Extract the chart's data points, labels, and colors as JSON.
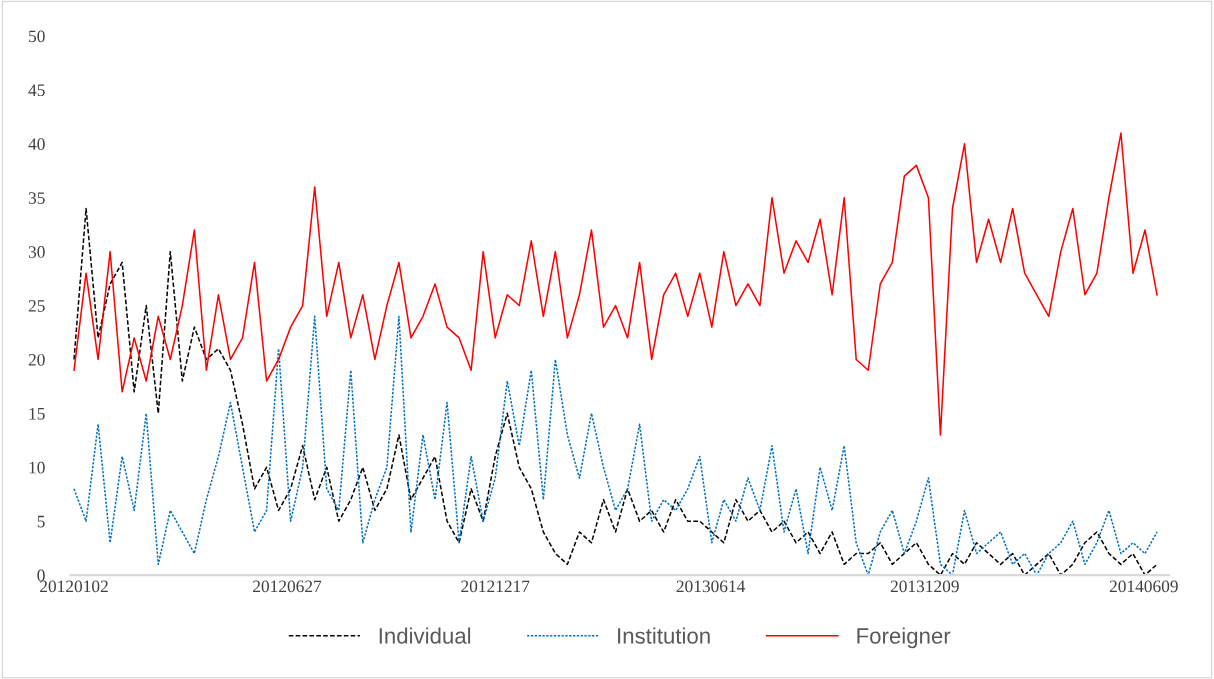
{
  "chart_data": {
    "type": "line",
    "x": [
      "2012-01-02",
      "2012-01-12",
      "2012-01-22",
      "2012-02-01",
      "2012-02-11",
      "2012-02-21",
      "2012-03-02",
      "2012-03-12",
      "2012-03-22",
      "2012-04-01",
      "2012-04-11",
      "2012-04-21",
      "2012-05-01",
      "2012-05-11",
      "2012-05-21",
      "2012-05-31",
      "2012-06-10",
      "2012-06-20",
      "2012-06-30",
      "2012-07-10",
      "2012-07-20",
      "2012-07-30",
      "2012-08-09",
      "2012-08-19",
      "2012-08-29",
      "2012-09-08",
      "2012-09-18",
      "2012-09-28",
      "2012-10-08",
      "2012-10-18",
      "2012-10-28",
      "2012-11-07",
      "2012-11-17",
      "2012-11-27",
      "2012-12-07",
      "2012-12-17",
      "2012-12-27",
      "2013-01-06",
      "2013-01-16",
      "2013-01-26",
      "2013-02-05",
      "2013-02-15",
      "2013-02-25",
      "2013-03-07",
      "2013-03-17",
      "2013-03-27",
      "2013-04-06",
      "2013-04-16",
      "2013-04-26",
      "2013-05-06",
      "2013-05-16",
      "2013-05-26",
      "2013-06-05",
      "2013-06-15",
      "2013-06-25",
      "2013-07-05",
      "2013-07-15",
      "2013-07-25",
      "2013-08-04",
      "2013-08-14",
      "2013-08-24",
      "2013-09-03",
      "2013-09-13",
      "2013-09-23",
      "2013-10-03",
      "2013-10-13",
      "2013-10-23",
      "2013-11-02",
      "2013-11-12",
      "2013-11-22",
      "2013-12-02",
      "2013-12-12",
      "2013-12-22",
      "2014-01-01",
      "2014-01-11",
      "2014-01-21",
      "2014-01-31",
      "2014-02-10",
      "2014-02-20",
      "2014-03-02",
      "2014-03-12",
      "2014-03-22",
      "2014-04-01",
      "2014-04-11",
      "2014-04-21",
      "2014-05-01",
      "2014-05-11",
      "2014-05-21",
      "2014-05-31",
      "2014-06-10",
      "2014-06-20"
    ],
    "series": [
      {
        "name": "Individual",
        "color": "#000000",
        "line_style": "dashed",
        "values": [
          20,
          34,
          22,
          27,
          29,
          17,
          25,
          15,
          30,
          18,
          23,
          20,
          21,
          19,
          14,
          8,
          10,
          6,
          8,
          12,
          7,
          10,
          5,
          7,
          10,
          6,
          8,
          13,
          7,
          9,
          11,
          5,
          3,
          8,
          5,
          11,
          15,
          10,
          8,
          4,
          2,
          1,
          4,
          3,
          7,
          4,
          8,
          5,
          6,
          4,
          7,
          5,
          5,
          4,
          3,
          7,
          5,
          6,
          4,
          5,
          3,
          4,
          2,
          4,
          1,
          2,
          2,
          3,
          1,
          2,
          3,
          1,
          0,
          2,
          1,
          3,
          2,
          1,
          2,
          0,
          1,
          2,
          0,
          1,
          3,
          4,
          2,
          1,
          2,
          0,
          1
        ]
      },
      {
        "name": "Institution",
        "color": "#0070c0",
        "line_style": "dotted",
        "values": [
          8,
          5,
          14,
          3,
          11,
          6,
          15,
          1,
          6,
          4,
          2,
          7,
          11,
          16,
          10,
          4,
          6,
          21,
          5,
          10,
          24,
          8,
          6,
          19,
          3,
          7,
          10,
          24,
          4,
          13,
          7,
          16,
          3,
          11,
          5,
          9,
          18,
          12,
          19,
          7,
          20,
          13,
          9,
          15,
          10,
          6,
          8,
          14,
          5,
          7,
          6,
          8,
          11,
          3,
          7,
          5,
          9,
          6,
          12,
          4,
          8,
          2,
          10,
          6,
          12,
          3,
          0,
          4,
          6,
          2,
          5,
          9,
          1,
          0,
          6,
          2,
          3,
          4,
          1,
          2,
          0,
          2,
          3,
          5,
          1,
          3,
          6,
          2,
          3,
          2,
          4
        ]
      },
      {
        "name": "Foreigner",
        "color": "#ff0000",
        "line_style": "solid",
        "values": [
          19,
          28,
          20,
          30,
          17,
          22,
          18,
          24,
          20,
          25,
          32,
          19,
          26,
          20,
          22,
          29,
          18,
          20,
          23,
          25,
          36,
          24,
          29,
          22,
          26,
          20,
          25,
          29,
          22,
          24,
          27,
          23,
          22,
          19,
          30,
          22,
          26,
          25,
          31,
          24,
          30,
          22,
          26,
          32,
          23,
          25,
          22,
          29,
          20,
          26,
          28,
          24,
          28,
          23,
          30,
          25,
          27,
          25,
          35,
          28,
          31,
          29,
          33,
          26,
          35,
          20,
          19,
          27,
          29,
          37,
          38,
          35,
          13,
          34,
          40,
          29,
          33,
          29,
          34,
          28,
          26,
          24,
          30,
          34,
          26,
          28,
          35,
          41,
          28,
          32,
          26
        ]
      }
    ],
    "xlim": [
      "2011-12-30",
      "2014-06-30"
    ],
    "xticks": [
      {
        "value": "2012-01-02",
        "label": "20120102"
      },
      {
        "value": "2012-06-27",
        "label": "20120627"
      },
      {
        "value": "2012-12-17",
        "label": "20121217"
      },
      {
        "value": "2013-06-14",
        "label": "20130614"
      },
      {
        "value": "2013-12-09",
        "label": "20131209"
      },
      {
        "value": "2014-06-09",
        "label": "20140609"
      }
    ],
    "ylim": [
      0,
      50
    ],
    "yticks": [
      0,
      5,
      10,
      15,
      20,
      25,
      30,
      35,
      40,
      45,
      50
    ],
    "grid": false,
    "legend": "bottom"
  }
}
